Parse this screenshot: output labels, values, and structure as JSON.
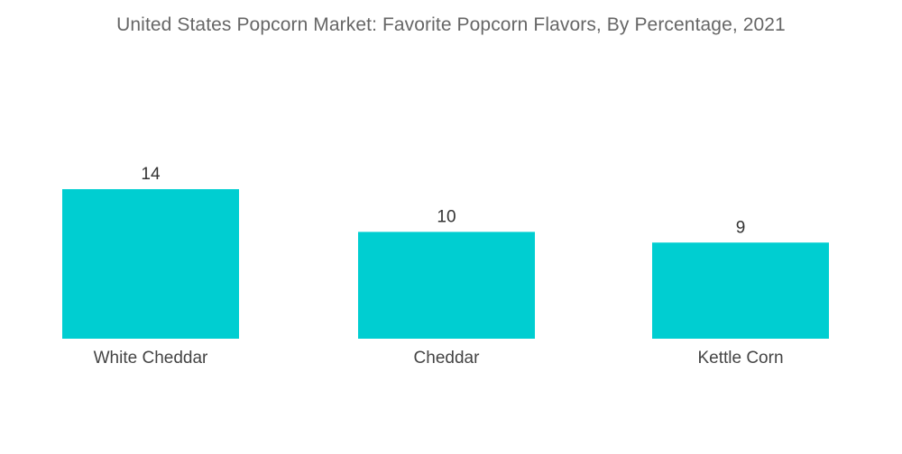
{
  "chart_data": {
    "type": "bar",
    "title": "United States Popcorn Market: Favorite Popcorn Flavors, By Percentage, 2021",
    "categories": [
      "White Cheddar",
      "Cheddar",
      "Kettle Corn"
    ],
    "values": [
      14,
      10,
      9
    ],
    "xlabel": "",
    "ylabel": "",
    "ylim": [
      0,
      14
    ],
    "grid": false,
    "bar_color": "#00CED1"
  }
}
